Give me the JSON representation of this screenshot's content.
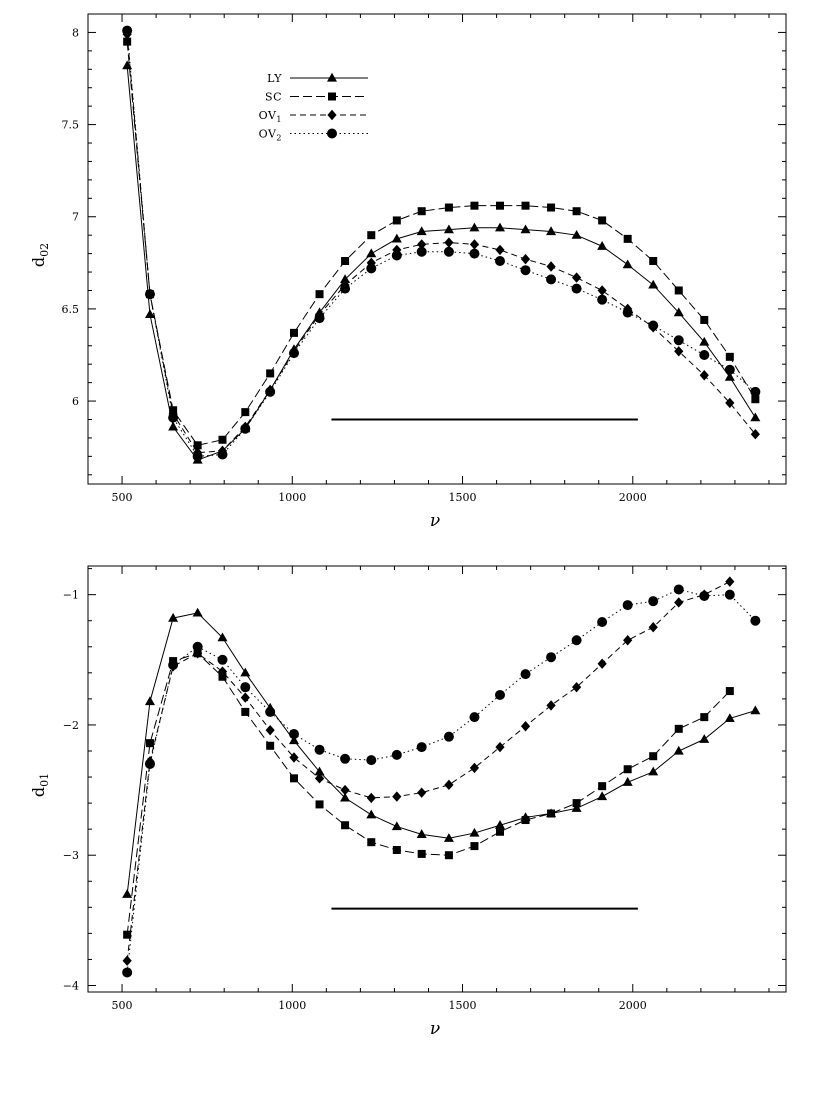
{
  "chart_data": [
    {
      "type": "line",
      "xlabel": "ν",
      "ylabel": "d",
      "ylabel_sub": "02",
      "xlim": [
        400,
        2450
      ],
      "ylim": [
        5.55,
        8.1
      ],
      "xticks": [
        500,
        1000,
        1500,
        2000
      ],
      "yticks": [
        6,
        6.5,
        7,
        7.5,
        8
      ],
      "xtick_labels": [
        "500",
        "1000",
        "1500",
        "2000"
      ],
      "ytick_labels": [
        "6",
        "6.5",
        "7",
        "7.5",
        "8"
      ],
      "grid": false,
      "legend": [
        {
          "name": "LY",
          "sub": ""
        },
        {
          "name": "SC",
          "sub": ""
        },
        {
          "name": "OV",
          "sub": "1"
        },
        {
          "name": "OV",
          "sub": "2"
        }
      ],
      "legend_position": "top-left",
      "bar_segment": {
        "x": [
          1115,
          2015
        ],
        "y": 5.9
      },
      "series": [
        {
          "key": "LY",
          "marker": "triangle",
          "line": "solid",
          "x": [
            515,
            582,
            650,
            722,
            795,
            862,
            935,
            1005,
            1080,
            1155,
            1232,
            1307,
            1380,
            1460,
            1535,
            1610,
            1685,
            1760,
            1835,
            1910,
            1985,
            2060,
            2135,
            2210,
            2285,
            2360
          ],
          "y": [
            7.82,
            6.47,
            5.86,
            5.68,
            5.73,
            5.85,
            6.06,
            6.28,
            6.48,
            6.66,
            6.8,
            6.88,
            6.92,
            6.93,
            6.94,
            6.94,
            6.93,
            6.92,
            6.9,
            6.84,
            6.74,
            6.63,
            6.48,
            6.32,
            6.13,
            5.91
          ]
        },
        {
          "key": "SC",
          "marker": "square",
          "line": "long-dash",
          "x": [
            515,
            582,
            650,
            722,
            795,
            862,
            935,
            1005,
            1080,
            1155,
            1232,
            1307,
            1380,
            1460,
            1535,
            1610,
            1685,
            1760,
            1835,
            1910,
            1985,
            2060,
            2135,
            2210,
            2285,
            2360
          ],
          "y": [
            7.95,
            6.58,
            5.95,
            5.76,
            5.79,
            5.94,
            6.15,
            6.37,
            6.58,
            6.76,
            6.9,
            6.98,
            7.03,
            7.05,
            7.06,
            7.06,
            7.06,
            7.05,
            7.03,
            6.98,
            6.88,
            6.76,
            6.6,
            6.44,
            6.24,
            6.01
          ]
        },
        {
          "key": "OV1",
          "marker": "diamond",
          "line": "dash",
          "x": [
            515,
            582,
            650,
            722,
            795,
            862,
            935,
            1005,
            1080,
            1155,
            1232,
            1307,
            1380,
            1460,
            1535,
            1610,
            1685,
            1760,
            1835,
            1910,
            1985,
            2060,
            2135,
            2210,
            2285,
            2360
          ],
          "y": [
            7.99,
            6.58,
            5.93,
            5.72,
            5.73,
            5.86,
            6.06,
            6.27,
            6.47,
            6.63,
            6.75,
            6.82,
            6.85,
            6.86,
            6.85,
            6.82,
            6.77,
            6.73,
            6.67,
            6.6,
            6.5,
            6.4,
            6.27,
            6.14,
            5.99,
            5.82
          ]
        },
        {
          "key": "OV2",
          "marker": "circle",
          "line": "dotted",
          "x": [
            515,
            582,
            650,
            722,
            795,
            862,
            935,
            1005,
            1080,
            1155,
            1232,
            1307,
            1380,
            1460,
            1535,
            1610,
            1685,
            1760,
            1835,
            1910,
            1985,
            2060,
            2135,
            2210,
            2285,
            2360
          ],
          "y": [
            8.01,
            6.58,
            5.91,
            5.7,
            5.71,
            5.85,
            6.05,
            6.26,
            6.45,
            6.61,
            6.72,
            6.79,
            6.81,
            6.81,
            6.8,
            6.76,
            6.71,
            6.66,
            6.61,
            6.55,
            6.48,
            6.41,
            6.33,
            6.25,
            6.17,
            6.05
          ]
        }
      ]
    },
    {
      "type": "line",
      "xlabel": "ν",
      "ylabel": "d",
      "ylabel_sub": "01",
      "xlim": [
        400,
        2450
      ],
      "ylim": [
        -4.05,
        -0.78
      ],
      "xticks": [
        500,
        1000,
        1500,
        2000
      ],
      "yticks": [
        -4,
        -3,
        -2,
        -1
      ],
      "xtick_labels": [
        "500",
        "1000",
        "1500",
        "2000"
      ],
      "ytick_labels": [
        "−4",
        "−3",
        "−2",
        "−1"
      ],
      "grid": false,
      "bar_segment": {
        "x": [
          1115,
          2015
        ],
        "y": -3.41
      },
      "series": [
        {
          "key": "LY",
          "marker": "triangle",
          "line": "solid",
          "x": [
            515,
            582,
            650,
            722,
            795,
            862,
            935,
            1005,
            1080,
            1155,
            1232,
            1307,
            1380,
            1460,
            1535,
            1610,
            1685,
            1760,
            1835,
            1910,
            1985,
            2060,
            2135,
            2210,
            2285,
            2360
          ],
          "y": [
            -3.3,
            -1.82,
            -1.18,
            -1.14,
            -1.33,
            -1.6,
            -1.87,
            -2.12,
            -2.36,
            -2.56,
            -2.69,
            -2.78,
            -2.84,
            -2.87,
            -2.83,
            -2.77,
            -2.71,
            -2.68,
            -2.64,
            -2.55,
            -2.44,
            -2.36,
            -2.2,
            -2.11,
            -1.95,
            -1.89
          ]
        },
        {
          "key": "SC",
          "marker": "square",
          "line": "long-dash",
          "x": [
            515,
            582,
            650,
            722,
            795,
            862,
            935,
            1005,
            1080,
            1155,
            1232,
            1307,
            1380,
            1460,
            1535,
            1610,
            1685,
            1760,
            1835,
            1910,
            1985,
            2060,
            2135,
            2210,
            2285
          ],
          "y": [
            -3.61,
            -2.14,
            -1.51,
            -1.45,
            -1.63,
            -1.9,
            -2.16,
            -2.41,
            -2.61,
            -2.77,
            -2.9,
            -2.96,
            -2.99,
            -3.0,
            -2.93,
            -2.82,
            -2.73,
            -2.68,
            -2.6,
            -2.47,
            -2.34,
            -2.24,
            -2.03,
            -1.94,
            -1.74
          ]
        },
        {
          "key": "OV1",
          "marker": "diamond",
          "line": "dash",
          "x": [
            515,
            582,
            650,
            722,
            795,
            862,
            935,
            1005,
            1080,
            1155,
            1232,
            1307,
            1380,
            1460,
            1535,
            1610,
            1685,
            1760,
            1835,
            1910,
            1985,
            2060,
            2135,
            2210,
            2285
          ],
          "y": [
            -3.81,
            -2.28,
            -1.55,
            -1.45,
            -1.59,
            -1.79,
            -2.04,
            -2.25,
            -2.41,
            -2.5,
            -2.56,
            -2.55,
            -2.52,
            -2.46,
            -2.33,
            -2.17,
            -2.01,
            -1.85,
            -1.71,
            -1.53,
            -1.35,
            -1.25,
            -1.06,
            -1.0,
            -0.9
          ]
        },
        {
          "key": "OV2",
          "marker": "circle",
          "line": "dotted",
          "x": [
            515,
            582,
            650,
            722,
            795,
            862,
            935,
            1005,
            1080,
            1155,
            1232,
            1307,
            1380,
            1460,
            1535,
            1610,
            1685,
            1760,
            1835,
            1910,
            1985,
            2060,
            2135,
            2210,
            2285,
            2360
          ],
          "y": [
            -3.9,
            -2.3,
            -1.54,
            -1.4,
            -1.5,
            -1.71,
            -1.9,
            -2.07,
            -2.19,
            -2.26,
            -2.27,
            -2.23,
            -2.17,
            -2.09,
            -1.94,
            -1.77,
            -1.61,
            -1.48,
            -1.35,
            -1.21,
            -1.08,
            -1.05,
            -0.96,
            -1.01,
            -1.0,
            -1.2
          ]
        }
      ]
    }
  ]
}
